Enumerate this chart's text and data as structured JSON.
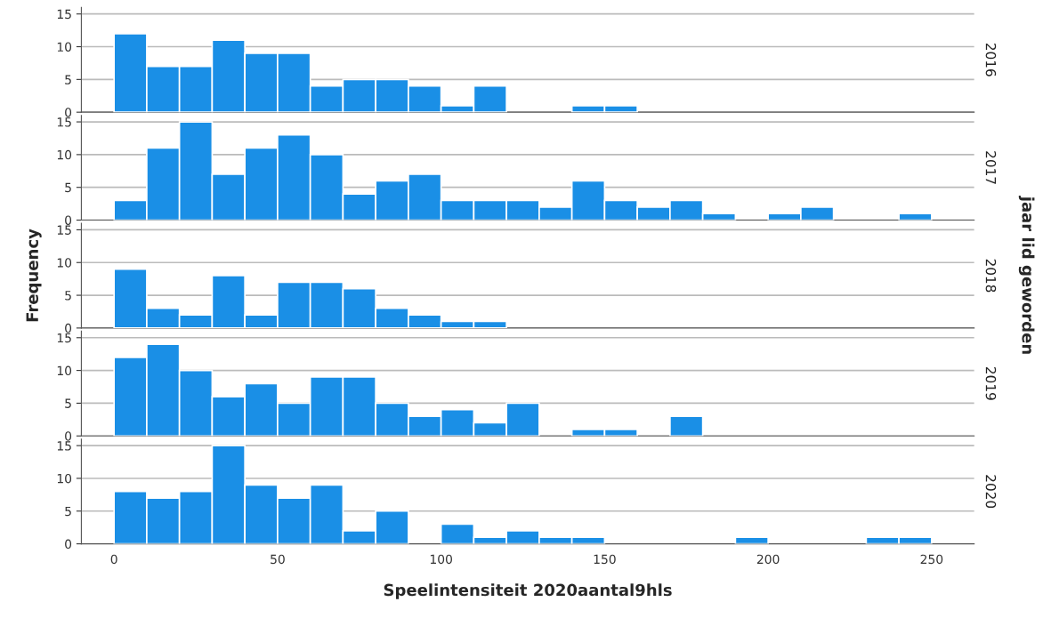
{
  "chart_data": [
    {
      "type": "histogram",
      "y2label": "2016",
      "bins": [
        0,
        10,
        20,
        30,
        40,
        50,
        60,
        70,
        80,
        90,
        100,
        110,
        120,
        130,
        140,
        150,
        160,
        170,
        180,
        190,
        200,
        210,
        220,
        230,
        240,
        250
      ],
      "values": [
        12,
        7,
        7,
        11,
        9,
        9,
        4,
        5,
        5,
        4,
        1,
        4,
        0,
        0,
        1,
        1,
        0,
        0,
        0,
        0,
        0,
        0,
        0,
        0,
        0
      ],
      "color": "#1a8fe6",
      "xlim": [
        -10,
        263
      ],
      "ylim": [
        0,
        16
      ],
      "yticks": [
        0,
        5,
        10,
        15
      ],
      "grid": "y",
      "tick_labels": "y"
    },
    {
      "type": "histogram",
      "y2label": "2017",
      "bins": [
        0,
        10,
        20,
        30,
        40,
        50,
        60,
        70,
        80,
        90,
        100,
        110,
        120,
        130,
        140,
        150,
        160,
        170,
        180,
        190,
        200,
        210,
        220,
        230,
        240,
        250
      ],
      "values": [
        3,
        11,
        15,
        7,
        11,
        13,
        10,
        4,
        6,
        7,
        3,
        3,
        3,
        2,
        6,
        3,
        2,
        3,
        1,
        0,
        1,
        2,
        0,
        0,
        1
      ],
      "color": "#1a8fe6",
      "xlim": [
        -10,
        263
      ],
      "ylim": [
        0,
        16
      ],
      "yticks": [
        0,
        5,
        10,
        15
      ],
      "grid": "y",
      "tick_labels": "y"
    },
    {
      "type": "histogram",
      "y2label": "2018",
      "ylabel": "Frequency",
      "annotations": [
        "jaar lid geworden"
      ],
      "bins": [
        0,
        10,
        20,
        30,
        40,
        50,
        60,
        70,
        80,
        90,
        100,
        110,
        120,
        130,
        140,
        150,
        160,
        170,
        180,
        190,
        200,
        210,
        220,
        230,
        240,
        250
      ],
      "values": [
        9,
        3,
        2,
        8,
        2,
        7,
        7,
        6,
        3,
        2,
        1,
        1,
        0,
        0,
        0,
        0,
        0,
        0,
        0,
        0,
        0,
        0,
        0,
        0,
        0
      ],
      "color": "#1a8fe6",
      "xlim": [
        -10,
        263
      ],
      "ylim": [
        0,
        16
      ],
      "yticks": [
        0,
        5,
        10,
        15
      ],
      "grid": "y",
      "tick_labels": "y"
    },
    {
      "type": "histogram",
      "y2label": "2019",
      "bins": [
        0,
        10,
        20,
        30,
        40,
        50,
        60,
        70,
        80,
        90,
        100,
        110,
        120,
        130,
        140,
        150,
        160,
        170,
        180,
        190,
        200,
        210,
        220,
        230,
        240,
        250
      ],
      "values": [
        12,
        14,
        10,
        6,
        8,
        5,
        9,
        9,
        5,
        3,
        4,
        2,
        5,
        0,
        1,
        1,
        0,
        3,
        0,
        0,
        0,
        0,
        0,
        0,
        0
      ],
      "color": "#1a8fe6",
      "xlim": [
        -10,
        263
      ],
      "ylim": [
        0,
        16
      ],
      "yticks": [
        0,
        5,
        10,
        15
      ],
      "grid": "y",
      "tick_labels": "y"
    },
    {
      "type": "histogram",
      "y2label": "2020",
      "xlabel": "Speelintensiteit 2020aantal9hls",
      "bins": [
        0,
        10,
        20,
        30,
        40,
        50,
        60,
        70,
        80,
        90,
        100,
        110,
        120,
        130,
        140,
        150,
        160,
        170,
        180,
        190,
        200,
        210,
        220,
        230,
        240,
        250
      ],
      "values": [
        8,
        7,
        8,
        15,
        9,
        7,
        9,
        2,
        5,
        0,
        3,
        1,
        2,
        1,
        1,
        0,
        0,
        0,
        0,
        1,
        0,
        0,
        0,
        1,
        1
      ],
      "color": "#1a8fe6",
      "xlim": [
        -10,
        263
      ],
      "ylim": [
        0,
        16
      ],
      "yticks": [
        0,
        5,
        10,
        15
      ],
      "xticks": [
        0,
        50,
        100,
        150,
        200,
        250
      ],
      "grid": "y"
    }
  ]
}
